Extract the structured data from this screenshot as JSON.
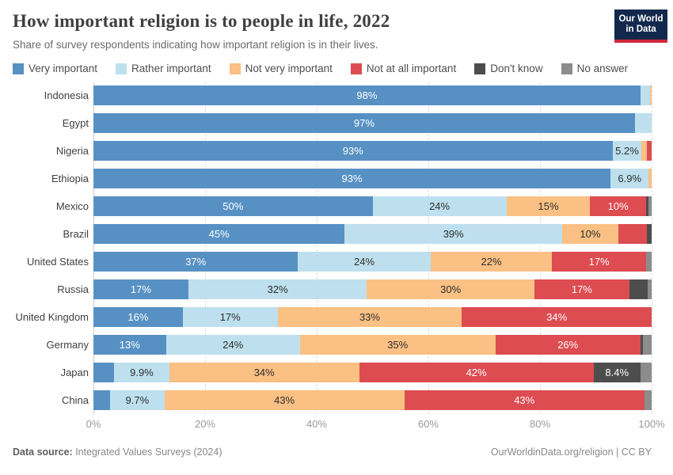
{
  "header": {
    "title": "How important religion is to people in life, 2022",
    "subtitle": "Share of survey respondents indicating how important religion is in their lives.",
    "logo_line1": "Our World",
    "logo_line2": "in Data",
    "logo_bg": "#12294d",
    "logo_accent": "#d2283c"
  },
  "legend": [
    {
      "label": "Very important",
      "color": "#5791c4"
    },
    {
      "label": "Rather important",
      "color": "#bee0ee"
    },
    {
      "label": "Not very important",
      "color": "#fac084"
    },
    {
      "label": "Not at all important",
      "color": "#dd4c51"
    },
    {
      "label": "Don't know",
      "color": "#4d4d4d"
    },
    {
      "label": "No answer",
      "color": "#8c8c8c"
    }
  ],
  "chart_data": {
    "type": "bar",
    "stacked": true,
    "orientation": "horizontal",
    "title": "How important religion is to people in life, 2022",
    "xlabel": "",
    "ylabel": "",
    "xlim": [
      0,
      100
    ],
    "x_ticks": [
      "0%",
      "20%",
      "40%",
      "60%",
      "80%",
      "100%"
    ],
    "grid": "vertical-dashed",
    "legend_position": "top",
    "categories": [
      "Indonesia",
      "Egypt",
      "Nigeria",
      "Ethiopia",
      "Mexico",
      "Brazil",
      "United States",
      "Russia",
      "United Kingdom",
      "Germany",
      "Japan",
      "China"
    ],
    "series": [
      {
        "name": "Very important",
        "color": "#5791c4",
        "label_color": "#ffffff",
        "values": [
          98,
          97,
          93,
          93,
          50,
          45,
          37,
          17,
          16,
          13,
          3.7,
          3
        ],
        "labels": [
          "98%",
          "97%",
          "93%",
          "93%",
          "50%",
          "45%",
          "37%",
          "17%",
          "16%",
          "13%",
          "",
          ""
        ]
      },
      {
        "name": "Rather important",
        "color": "#bee0ee",
        "label_color": "#2d2d2d",
        "values": [
          1.7,
          3,
          5.2,
          6.9,
          24,
          39,
          24,
          32,
          17,
          24,
          9.9,
          9.7
        ],
        "labels": [
          "",
          "",
          "5.2%",
          "6.9%",
          "24%",
          "39%",
          "24%",
          "32%",
          "17%",
          "24%",
          "9.9%",
          "9.7%"
        ]
      },
      {
        "name": "Not very important",
        "color": "#fac084",
        "label_color": "#2d2d2d",
        "values": [
          0.3,
          0,
          0.9,
          0.5,
          15,
          10,
          22,
          30,
          33,
          35,
          34,
          43
        ],
        "labels": [
          "",
          "",
          "",
          "",
          "15%",
          "10%",
          "22%",
          "30%",
          "33%",
          "35%",
          "34%",
          "43%"
        ]
      },
      {
        "name": "Not at all important",
        "color": "#dd4c51",
        "label_color": "#ffffff",
        "values": [
          0,
          0,
          0.9,
          0,
          10,
          5.2,
          17,
          17,
          34,
          26,
          42,
          43
        ],
        "labels": [
          "",
          "",
          "",
          "",
          "10%",
          "",
          "17%",
          "17%",
          "34%",
          "26%",
          "42%",
          "43%"
        ]
      },
      {
        "name": "Don't know",
        "color": "#4d4d4d",
        "label_color": "#ffffff",
        "values": [
          0,
          0,
          0,
          0,
          0.5,
          0.8,
          0,
          3.3,
          0,
          0.5,
          8.4,
          0
        ],
        "labels": [
          "",
          "",
          "",
          "",
          "",
          "",
          "",
          "",
          "",
          "",
          "8.4%",
          ""
        ]
      },
      {
        "name": "No answer",
        "color": "#8c8c8c",
        "label_color": "#ffffff",
        "values": [
          0,
          0,
          0,
          0,
          0.5,
          0,
          1,
          0.7,
          0,
          1.5,
          2,
          1.3
        ],
        "labels": [
          "",
          "",
          "",
          "",
          "",
          "",
          "",
          "",
          "",
          "",
          "",
          ""
        ]
      }
    ]
  },
  "footer": {
    "source_prefix": "Data source:",
    "source": " Integrated Values Surveys (2024)",
    "credit": "OurWorldinData.org/religion | CC BY"
  }
}
